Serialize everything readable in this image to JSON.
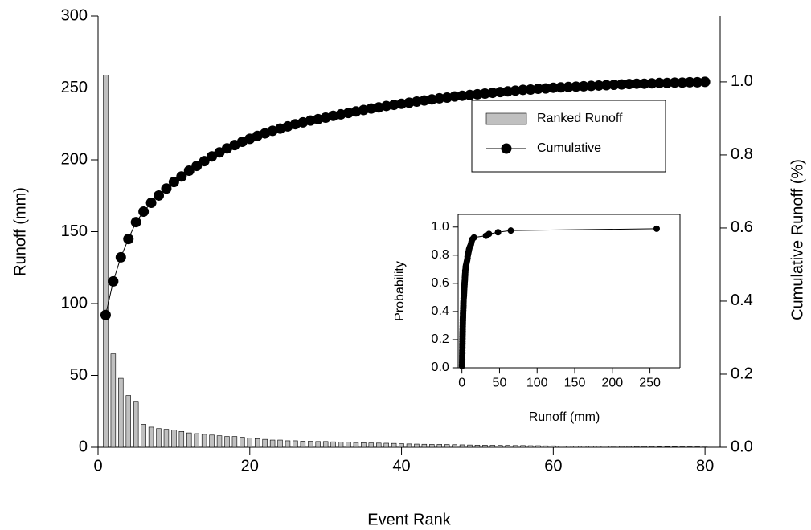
{
  "chart_data": [
    {
      "type": "bar",
      "xlabel": "Event Rank",
      "ylabel": "Runoff (mm)",
      "y2label": "Cumulative Runoff (%)",
      "x": [
        1,
        2,
        3,
        4,
        5,
        6,
        7,
        8,
        9,
        10,
        11,
        12,
        13,
        14,
        15,
        16,
        17,
        18,
        19,
        20,
        21,
        22,
        23,
        24,
        25,
        26,
        27,
        28,
        29,
        30,
        31,
        32,
        33,
        34,
        35,
        36,
        37,
        38,
        39,
        40,
        41,
        42,
        43,
        44,
        45,
        46,
        47,
        48,
        49,
        50,
        51,
        52,
        53,
        54,
        55,
        56,
        57,
        58,
        59,
        60,
        61,
        62,
        63,
        64,
        65,
        66,
        67,
        68,
        69,
        70,
        71,
        72,
        73,
        74,
        75,
        76,
        77,
        78,
        79,
        80
      ],
      "series": [
        {
          "name": "Ranked Runoff",
          "type": "bar",
          "color": "#c0c0c0",
          "values": [
            259,
            65,
            48,
            36,
            32,
            16,
            14,
            13,
            12.5,
            12,
            11,
            10,
            9.5,
            9,
            8.5,
            8,
            7.5,
            7.5,
            7,
            6.5,
            6,
            5.5,
            5,
            5,
            4.5,
            4.5,
            4.3,
            4.2,
            4,
            4,
            3.8,
            3.6,
            3.5,
            3.3,
            3.2,
            3,
            2.9,
            2.8,
            2.7,
            2.5,
            2.3,
            2.2,
            2.1,
            2,
            2,
            1.9,
            1.8,
            1.7,
            1.6,
            1.5,
            1.5,
            1.4,
            1.3,
            1.3,
            1.2,
            1.2,
            1.1,
            1.1,
            1,
            1,
            0.9,
            0.9,
            0.8,
            0.8,
            0.7,
            0.7,
            0.7,
            0.6,
            0.6,
            0.6,
            0.5,
            0.5,
            0.5,
            0.4,
            0.4,
            0.4,
            0.3,
            0.3,
            0.3,
            0.2
          ]
        },
        {
          "name": "Cumulative",
          "type": "line",
          "axis": "y2",
          "color": "#000000",
          "values": [
            0.362,
            0.454,
            0.52,
            0.57,
            0.616,
            0.645,
            0.669,
            0.689,
            0.708,
            0.726,
            0.741,
            0.757,
            0.77,
            0.783,
            0.796,
            0.807,
            0.818,
            0.827,
            0.836,
            0.844,
            0.852,
            0.859,
            0.866,
            0.872,
            0.878,
            0.884,
            0.889,
            0.894,
            0.898,
            0.902,
            0.907,
            0.911,
            0.915,
            0.919,
            0.923,
            0.927,
            0.93,
            0.934,
            0.937,
            0.94,
            0.943,
            0.946,
            0.949,
            0.952,
            0.955,
            0.957,
            0.96,
            0.962,
            0.964,
            0.966,
            0.968,
            0.97,
            0.972,
            0.974,
            0.976,
            0.978,
            0.979,
            0.981,
            0.982,
            0.984,
            0.985,
            0.986,
            0.987,
            0.988,
            0.989,
            0.99,
            0.991,
            0.992,
            0.993,
            0.994,
            0.995,
            0.995,
            0.996,
            0.997,
            0.997,
            0.998,
            0.998,
            0.999,
            0.999,
            1.0
          ]
        }
      ],
      "xlim": [
        0,
        82
      ],
      "xticks": [
        0,
        20,
        40,
        60,
        80
      ],
      "ylim": [
        0,
        300
      ],
      "yticks": [
        0,
        50,
        100,
        150,
        200,
        250,
        300
      ],
      "y2lim": [
        0,
        1.18
      ],
      "y2ticks": [
        {
          "value": 0,
          "label": "0.0"
        },
        0.2,
        0.4,
        0.6,
        0.8,
        {
          "value": 1,
          "label": "1.0"
        }
      ],
      "legend": "upper right"
    },
    {
      "type": "line",
      "xlabel": "Runoff (mm)",
      "ylabel": "Probability",
      "color": "#000000",
      "x": [
        0.2,
        0.3,
        0.3,
        0.3,
        0.4,
        0.4,
        0.4,
        0.5,
        0.5,
        0.5,
        0.6,
        0.6,
        0.6,
        0.7,
        0.7,
        0.7,
        0.8,
        0.8,
        0.9,
        0.9,
        1,
        1,
        1.1,
        1.1,
        1.2,
        1.2,
        1.3,
        1.3,
        1.4,
        1.5,
        1.5,
        1.6,
        1.7,
        1.8,
        1.9,
        2,
        2,
        2.1,
        2.2,
        2.3,
        2.5,
        2.7,
        2.8,
        2.9,
        3,
        3.2,
        3.3,
        3.5,
        3.6,
        3.8,
        4,
        4,
        4.2,
        4.3,
        4.5,
        4.5,
        5,
        5,
        5.5,
        6,
        6.5,
        7,
        7.5,
        7.5,
        8,
        8.5,
        9,
        9.5,
        10,
        11,
        12,
        12.5,
        13,
        14,
        16,
        32,
        36,
        48,
        65,
        259
      ],
      "values": [
        0.012,
        0.025,
        0.037,
        0.049,
        0.062,
        0.074,
        0.086,
        0.099,
        0.111,
        0.123,
        0.136,
        0.148,
        0.16,
        0.173,
        0.185,
        0.198,
        0.21,
        0.222,
        0.235,
        0.247,
        0.259,
        0.272,
        0.284,
        0.296,
        0.309,
        0.321,
        0.333,
        0.346,
        0.358,
        0.37,
        0.383,
        0.395,
        0.407,
        0.42,
        0.432,
        0.444,
        0.457,
        0.469,
        0.481,
        0.494,
        0.506,
        0.519,
        0.531,
        0.543,
        0.556,
        0.568,
        0.58,
        0.593,
        0.605,
        0.617,
        0.63,
        0.642,
        0.654,
        0.667,
        0.679,
        0.691,
        0.704,
        0.716,
        0.728,
        0.741,
        0.753,
        0.765,
        0.778,
        0.79,
        0.802,
        0.815,
        0.827,
        0.84,
        0.852,
        0.864,
        0.877,
        0.889,
        0.901,
        0.914,
        0.926,
        0.938,
        0.951,
        0.963,
        0.975,
        0.988
      ],
      "xlim": [
        -5,
        290
      ],
      "xticks": [
        0,
        50,
        100,
        150,
        200,
        250
      ],
      "ylim": [
        0,
        1.09
      ],
      "yticks": [
        {
          "value": 0,
          "label": "0.0"
        },
        0.2,
        0.4,
        0.6,
        0.8,
        {
          "value": 1,
          "label": "1.0"
        }
      ]
    }
  ]
}
